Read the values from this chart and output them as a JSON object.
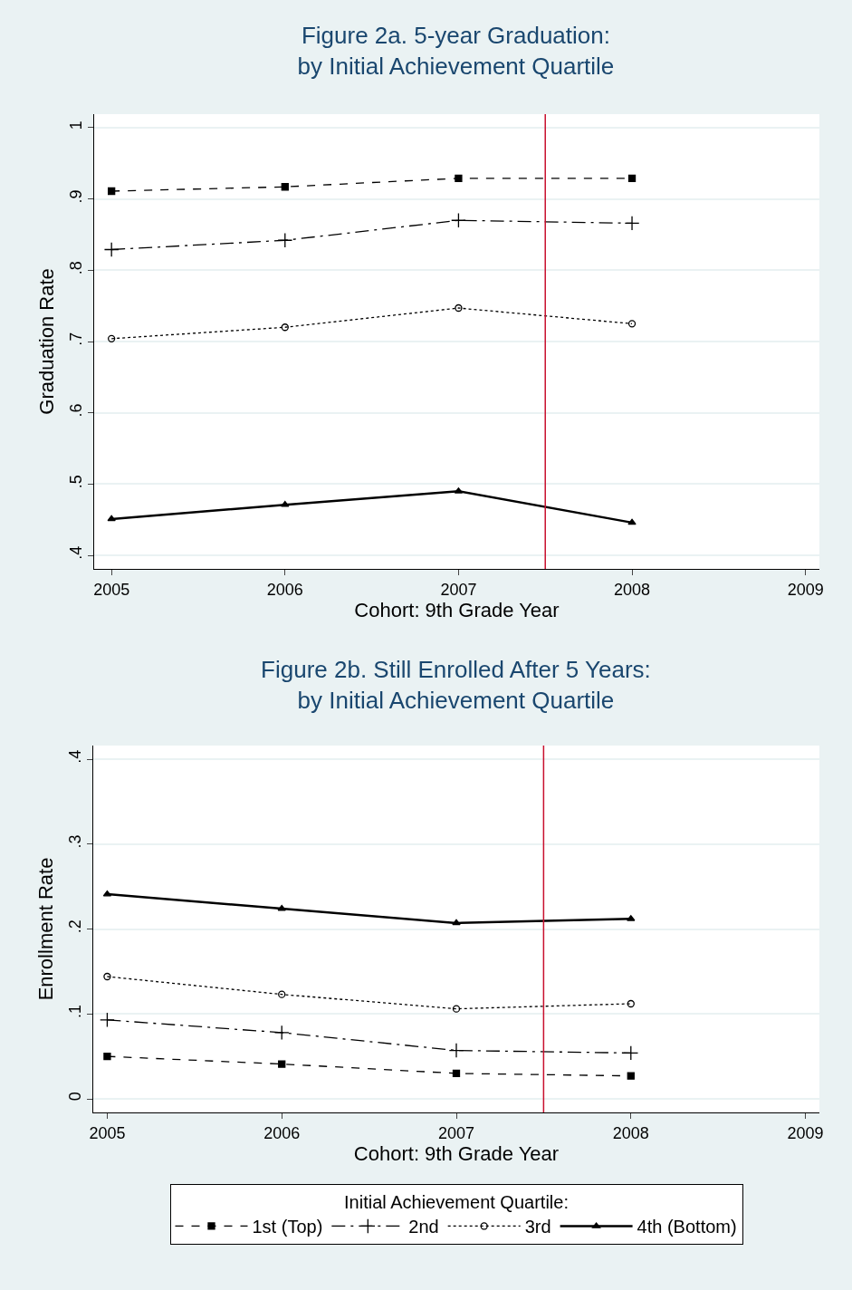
{
  "chart_data": [
    {
      "type": "line",
      "title": "Figure 2a. 5-year Graduation:\nby Initial Achievement Quartile",
      "xlabel": "Cohort: 9th Grade Year",
      "ylabel": "Graduation Rate",
      "x": [
        2005,
        2006,
        2007,
        2008
      ],
      "series": [
        {
          "color": "#000000",
          "values": [
            0.911,
            0.917,
            0.929,
            0.929
          ],
          "marker": "square",
          "line_style": "dashed"
        },
        {
          "color": "#000000",
          "values": [
            0.829,
            0.842,
            0.87,
            0.866
          ],
          "marker": "cross",
          "line_style": "dashdot"
        },
        {
          "color": "#000000",
          "values": [
            0.704,
            0.72,
            0.747,
            0.725
          ],
          "marker": "circle",
          "line_style": "dotted"
        },
        {
          "color": "#000000",
          "values": [
            0.451,
            0.471,
            0.49,
            0.446
          ],
          "marker": "triangle",
          "line_style": "solid"
        }
      ],
      "xlim": [
        2004.9,
        2009.08
      ],
      "xticks": [
        2005,
        2006,
        2007,
        2008,
        2009
      ],
      "ylim": [
        0.381,
        1.019
      ],
      "yticks": [
        {
          "value": 0.4,
          "label": ".4"
        },
        {
          "value": 0.5,
          "label": ".5"
        },
        {
          "value": 0.6,
          "label": ".6"
        },
        {
          "value": 0.7,
          "label": ".7"
        },
        {
          "value": 0.8,
          "label": ".8"
        },
        {
          "value": 0.9,
          "label": ".9"
        },
        {
          "value": 1,
          "label": "1"
        }
      ],
      "ref_lines": [
        {
          "axis": "x",
          "value": 2007.5,
          "color": "#c8102e"
        }
      ],
      "grid": "y",
      "legend": false
    },
    {
      "type": "line",
      "title": "Figure 2b. Still Enrolled After 5 Years:\nby Initial Achievement Quartile",
      "xlabel": "Cohort: 9th Grade Year",
      "ylabel": "Enrollment Rate",
      "legend_title": "Initial Achievement Quartile:",
      "x": [
        2005,
        2006,
        2007,
        2008
      ],
      "series": [
        {
          "name": "1st (Top)",
          "color": "#000000",
          "values": [
            0.05,
            0.041,
            0.03,
            0.027
          ],
          "marker": "square",
          "line_style": "dashed"
        },
        {
          "name": "2nd",
          "color": "#000000",
          "values": [
            0.093,
            0.078,
            0.057,
            0.054
          ],
          "marker": "cross",
          "line_style": "dashdot"
        },
        {
          "name": "3rd",
          "color": "#000000",
          "values": [
            0.144,
            0.123,
            0.106,
            0.112
          ],
          "marker": "circle",
          "line_style": "dotted"
        },
        {
          "name": "4th (Bottom)",
          "color": "#000000",
          "values": [
            0.241,
            0.224,
            0.207,
            0.212
          ],
          "marker": "triangle",
          "line_style": "solid"
        }
      ],
      "xlim": [
        2004.92,
        2009.08
      ],
      "xticks": [
        2005,
        2006,
        2007,
        2008,
        2009
      ],
      "ylim": [
        -0.016,
        0.416
      ],
      "yticks": [
        0,
        {
          "value": 0.1,
          "label": ".1"
        },
        {
          "value": 0.2,
          "label": ".2"
        },
        {
          "value": 0.3,
          "label": ".3"
        },
        {
          "value": 0.4,
          "label": ".4"
        }
      ],
      "ref_lines": [
        {
          "axis": "x",
          "value": 2007.5,
          "color": "#c8102e"
        }
      ],
      "grid": "y",
      "legend": "bottom"
    }
  ]
}
